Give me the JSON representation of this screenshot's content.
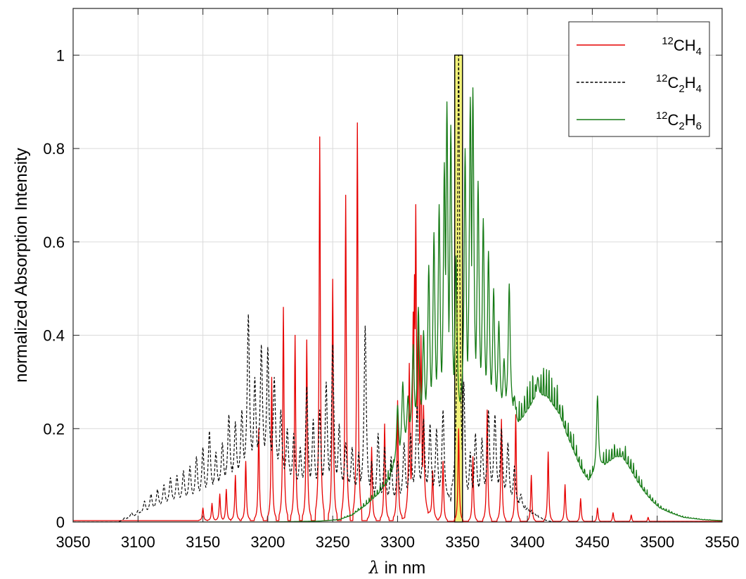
{
  "chart_data": {
    "type": "line",
    "xlabel": "λ in nm",
    "xlabel_symbol": "λ",
    "xlabel_rest": " in nm",
    "ylabel": "normalized Absorption Intensity",
    "xlim": [
      3050,
      3550
    ],
    "ylim": [
      0,
      1.1
    ],
    "xticks": [
      3050,
      3100,
      3150,
      3200,
      3250,
      3300,
      3350,
      3400,
      3450,
      3500,
      3550
    ],
    "yticks": [
      0,
      0.2,
      0.4,
      0.6,
      0.8,
      1
    ],
    "xtick_labels": [
      "3050",
      "3100",
      "3150",
      "3200",
      "3250",
      "3300",
      "3350",
      "3400",
      "3450",
      "3500",
      "3550"
    ],
    "ytick_labels": [
      "0",
      "0.2",
      "0.4",
      "0.6",
      "0.8",
      "1"
    ],
    "grid": true,
    "legend_position": "top-right",
    "highlight": {
      "x": [
        3344,
        3350
      ],
      "y": [
        0,
        1
      ],
      "color": "#f2f27a"
    },
    "series": [
      {
        "name": "12CH4",
        "label_parts": {
          "sup1": "12",
          "b1": "CH",
          "sub1": "4",
          "b2": "",
          "sub2": ""
        },
        "color": "#e60000",
        "style": "solid",
        "peaks": [
          [
            3150,
            0.03
          ],
          [
            3157,
            0.04
          ],
          [
            3163,
            0.06
          ],
          [
            3168,
            0.07
          ],
          [
            3175,
            0.1
          ],
          [
            3183,
            0.13
          ],
          [
            3193,
            0.2
          ],
          [
            3203,
            0.31
          ],
          [
            3212,
            0.46
          ],
          [
            3221,
            0.4
          ],
          [
            3230,
            0.39
          ],
          [
            3240,
            0.825
          ],
          [
            3250,
            0.52
          ],
          [
            3260,
            0.7
          ],
          [
            3269,
            0.855
          ],
          [
            3280,
            0.16
          ],
          [
            3290,
            0.21
          ],
          [
            3300,
            0.26
          ],
          [
            3309,
            0.34
          ],
          [
            3312,
            0.45
          ],
          [
            3313,
            0.53
          ],
          [
            3314,
            0.68
          ],
          [
            3316,
            0.45
          ],
          [
            3318,
            0.4
          ],
          [
            3320,
            0.25
          ],
          [
            3327,
            0.11
          ],
          [
            3335,
            0.13
          ],
          [
            3347,
            0.2
          ],
          [
            3358,
            0.14
          ],
          [
            3369,
            0.24
          ],
          [
            3380,
            0.22
          ],
          [
            3391,
            0.23
          ],
          [
            3403,
            0.1
          ],
          [
            3416,
            0.15
          ],
          [
            3429,
            0.08
          ],
          [
            3441,
            0.05
          ],
          [
            3454,
            0.03
          ],
          [
            3466,
            0.02
          ],
          [
            3480,
            0.015
          ],
          [
            3493,
            0.01
          ]
        ],
        "envelope": [
          [
            3300,
            0.003
          ],
          [
            3306,
            0.01
          ],
          [
            3310,
            0.04
          ],
          [
            3313,
            0.09
          ],
          [
            3316,
            0.1
          ],
          [
            3319,
            0.05
          ],
          [
            3323,
            0.02
          ],
          [
            3330,
            0.005
          ],
          [
            3340,
            0.0
          ]
        ]
      },
      {
        "name": "12C2H4",
        "label_parts": {
          "sup1": "12",
          "b1": "C",
          "sub1": "2",
          "b2": "H",
          "sub2": "4"
        },
        "color": "#000000",
        "style": "dashed",
        "envelope": [
          [
            3085,
            0.0
          ],
          [
            3095,
            0.01
          ],
          [
            3105,
            0.02
          ],
          [
            3115,
            0.03
          ],
          [
            3125,
            0.04
          ],
          [
            3135,
            0.045
          ],
          [
            3145,
            0.05
          ],
          [
            3155,
            0.06
          ],
          [
            3165,
            0.08
          ],
          [
            3175,
            0.09
          ],
          [
            3185,
            0.11
          ],
          [
            3195,
            0.13
          ],
          [
            3205,
            0.12
          ],
          [
            3215,
            0.09
          ],
          [
            3225,
            0.075
          ],
          [
            3235,
            0.07
          ],
          [
            3245,
            0.07
          ],
          [
            3255,
            0.075
          ],
          [
            3265,
            0.07
          ],
          [
            3275,
            0.055
          ],
          [
            3285,
            0.045
          ],
          [
            3295,
            0.04
          ],
          [
            3305,
            0.05
          ],
          [
            3315,
            0.07
          ],
          [
            3325,
            0.06
          ],
          [
            3335,
            0.05
          ],
          [
            3345,
            0.04
          ],
          [
            3355,
            0.045
          ],
          [
            3365,
            0.06
          ],
          [
            3375,
            0.065
          ],
          [
            3385,
            0.05
          ],
          [
            3395,
            0.03
          ],
          [
            3405,
            0.015
          ],
          [
            3412,
            0.005
          ],
          [
            3420,
            0.0
          ]
        ],
        "peaks": [
          [
            3090,
            0.01
          ],
          [
            3095,
            0.02
          ],
          [
            3100,
            0.025
          ],
          [
            3105,
            0.045
          ],
          [
            3110,
            0.06
          ],
          [
            3115,
            0.07
          ],
          [
            3120,
            0.08
          ],
          [
            3125,
            0.095
          ],
          [
            3130,
            0.1
          ],
          [
            3135,
            0.11
          ],
          [
            3140,
            0.12
          ],
          [
            3145,
            0.14
          ],
          [
            3150,
            0.16
          ],
          [
            3155,
            0.195
          ],
          [
            3160,
            0.15
          ],
          [
            3165,
            0.17
          ],
          [
            3170,
            0.23
          ],
          [
            3175,
            0.215
          ],
          [
            3180,
            0.24
          ],
          [
            3185,
            0.445
          ],
          [
            3190,
            0.31
          ],
          [
            3195,
            0.38
          ],
          [
            3200,
            0.375
          ],
          [
            3205,
            0.31
          ],
          [
            3210,
            0.24
          ],
          [
            3215,
            0.2
          ],
          [
            3220,
            0.19
          ],
          [
            3225,
            0.16
          ],
          [
            3230,
            0.29
          ],
          [
            3235,
            0.22
          ],
          [
            3240,
            0.24
          ],
          [
            3245,
            0.3
          ],
          [
            3250,
            0.38
          ],
          [
            3255,
            0.21
          ],
          [
            3260,
            0.17
          ],
          [
            3265,
            0.16
          ],
          [
            3270,
            0.15
          ],
          [
            3275,
            0.42
          ],
          [
            3280,
            0.13
          ],
          [
            3285,
            0.19
          ],
          [
            3290,
            0.16
          ],
          [
            3295,
            0.14
          ],
          [
            3300,
            0.13
          ],
          [
            3305,
            0.17
          ],
          [
            3310,
            0.19
          ],
          [
            3315,
            0.25
          ],
          [
            3320,
            0.22
          ],
          [
            3325,
            0.21
          ],
          [
            3330,
            0.2
          ],
          [
            3335,
            0.24
          ],
          [
            3347,
            1.0
          ],
          [
            3351,
            0.3
          ],
          [
            3356,
            0.15
          ],
          [
            3360,
            0.19
          ],
          [
            3365,
            0.18
          ],
          [
            3370,
            0.24
          ],
          [
            3375,
            0.23
          ],
          [
            3380,
            0.2
          ],
          [
            3385,
            0.17
          ],
          [
            3390,
            0.12
          ],
          [
            3395,
            0.06
          ],
          [
            3400,
            0.03
          ],
          [
            3405,
            0.02
          ],
          [
            3410,
            0.01
          ]
        ]
      },
      {
        "name": "12C2H6",
        "label_parts": {
          "sup1": "12",
          "b1": "C",
          "sub1": "2",
          "b2": "H",
          "sub2": "6"
        },
        "color": "#157a15",
        "style": "solid",
        "envelope": [
          [
            3200,
            0.0
          ],
          [
            3240,
            0.002
          ],
          [
            3255,
            0.005
          ],
          [
            3265,
            0.015
          ],
          [
            3275,
            0.035
          ],
          [
            3285,
            0.06
          ],
          [
            3293,
            0.09
          ],
          [
            3300,
            0.13
          ],
          [
            3306,
            0.17
          ],
          [
            3312,
            0.2
          ],
          [
            3318,
            0.21
          ],
          [
            3324,
            0.22
          ],
          [
            3330,
            0.23
          ],
          [
            3336,
            0.23
          ],
          [
            3342,
            0.23
          ],
          [
            3348,
            0.23
          ],
          [
            3354,
            0.23
          ],
          [
            3360,
            0.25
          ],
          [
            3366,
            0.25
          ],
          [
            3372,
            0.24
          ],
          [
            3378,
            0.24
          ],
          [
            3383,
            0.24
          ],
          [
            3388,
            0.23
          ],
          [
            3393,
            0.21
          ],
          [
            3400,
            0.24
          ],
          [
            3405,
            0.26
          ],
          [
            3410,
            0.27
          ],
          [
            3415,
            0.27
          ],
          [
            3420,
            0.25
          ],
          [
            3425,
            0.23
          ],
          [
            3430,
            0.19
          ],
          [
            3436,
            0.15
          ],
          [
            3442,
            0.11
          ],
          [
            3447,
            0.09
          ],
          [
            3452,
            0.1
          ],
          [
            3458,
            0.12
          ],
          [
            3463,
            0.13
          ],
          [
            3468,
            0.14
          ],
          [
            3473,
            0.14
          ],
          [
            3478,
            0.12
          ],
          [
            3484,
            0.09
          ],
          [
            3490,
            0.065
          ],
          [
            3496,
            0.045
          ],
          [
            3502,
            0.03
          ],
          [
            3510,
            0.02
          ],
          [
            3520,
            0.01
          ],
          [
            3535,
            0.005
          ],
          [
            3550,
            0.003
          ]
        ],
        "peaks": [
          [
            3300,
            0.25
          ],
          [
            3304,
            0.3
          ],
          [
            3308,
            0.27
          ],
          [
            3312,
            0.38
          ],
          [
            3316,
            0.46
          ],
          [
            3320,
            0.41
          ],
          [
            3324,
            0.55
          ],
          [
            3328,
            0.62
          ],
          [
            3332,
            0.68
          ],
          [
            3336,
            0.77
          ],
          [
            3338,
            0.9
          ],
          [
            3341,
            0.85
          ],
          [
            3345,
            0.57
          ],
          [
            3352,
            0.8
          ],
          [
            3356,
            0.91
          ],
          [
            3358,
            0.93
          ],
          [
            3362,
            0.73
          ],
          [
            3366,
            0.65
          ],
          [
            3370,
            0.58
          ],
          [
            3374,
            0.5
          ],
          [
            3378,
            0.43
          ],
          [
            3382,
            0.35
          ],
          [
            3386,
            0.51
          ],
          [
            3390,
            0.27
          ],
          [
            3408,
            0.31
          ],
          [
            3454,
            0.27
          ]
        ]
      }
    ]
  }
}
